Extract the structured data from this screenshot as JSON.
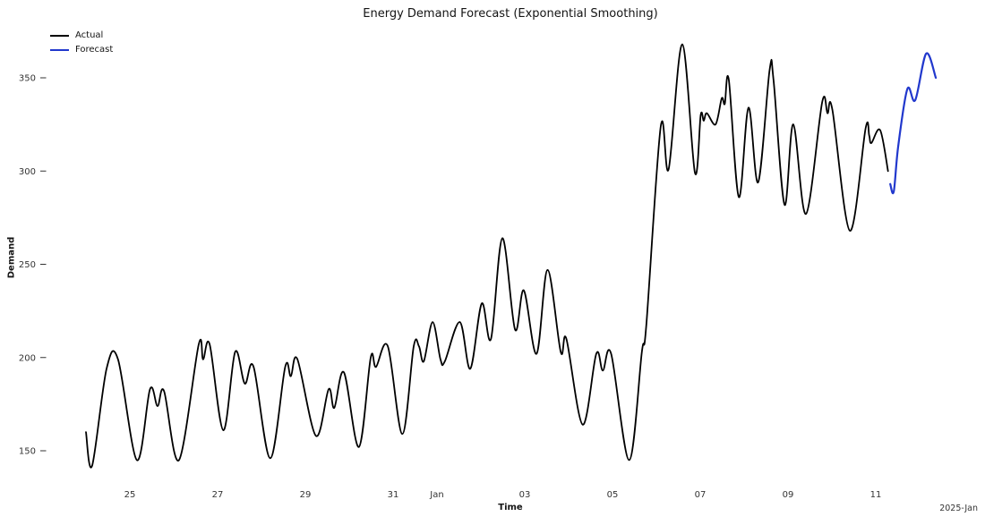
{
  "chart_data": {
    "type": "line",
    "title": "Energy Demand Forecast (Exponential Smoothing)",
    "xlabel": "Time",
    "ylabel": "Demand",
    "x_axis_offset_note": "2025-Jan",
    "x_unit": "days since 2024-12-24 (x ticks are dates, Dec 25 - Jan 11)",
    "grid": false,
    "background": "#ffffff",
    "legend": {
      "position": "upper-left",
      "entries": [
        "Actual",
        "Forecast"
      ]
    },
    "x_ticks": [
      {
        "t": 1,
        "label": "25"
      },
      {
        "t": 3,
        "label": "27"
      },
      {
        "t": 5,
        "label": "29"
      },
      {
        "t": 7,
        "label": "31"
      },
      {
        "t": 8,
        "label": "Jan"
      },
      {
        "t": 10,
        "label": "03"
      },
      {
        "t": 12,
        "label": "05"
      },
      {
        "t": 14,
        "label": "07"
      },
      {
        "t": 16,
        "label": "09"
      },
      {
        "t": 18,
        "label": "11"
      }
    ],
    "y_ticks": [
      150,
      200,
      250,
      300,
      350
    ],
    "xlim": [
      -0.8,
      19.9
    ],
    "ylim": [
      128,
      372
    ],
    "series": [
      {
        "name": "Actual",
        "color": "#000000",
        "line_width": 1.8,
        "points": [
          [
            0.0,
            160
          ],
          [
            0.14,
            142
          ],
          [
            0.47,
            194
          ],
          [
            0.73,
            199
          ],
          [
            1.16,
            145
          ],
          [
            1.46,
            183
          ],
          [
            1.63,
            174
          ],
          [
            1.78,
            182
          ],
          [
            2.12,
            145
          ],
          [
            2.57,
            207
          ],
          [
            2.67,
            199
          ],
          [
            2.82,
            207
          ],
          [
            3.13,
            161
          ],
          [
            3.4,
            203
          ],
          [
            3.62,
            186
          ],
          [
            3.82,
            195
          ],
          [
            4.2,
            146
          ],
          [
            4.54,
            195
          ],
          [
            4.67,
            190
          ],
          [
            4.82,
            199
          ],
          [
            5.24,
            158
          ],
          [
            5.53,
            183
          ],
          [
            5.66,
            173
          ],
          [
            5.88,
            192
          ],
          [
            6.22,
            152
          ],
          [
            6.49,
            200
          ],
          [
            6.61,
            195
          ],
          [
            6.88,
            206
          ],
          [
            7.21,
            159
          ],
          [
            7.47,
            206
          ],
          [
            7.59,
            206
          ],
          [
            7.7,
            198
          ],
          [
            7.9,
            219
          ],
          [
            8.08,
            199
          ],
          [
            8.18,
            198
          ],
          [
            8.52,
            219
          ],
          [
            8.76,
            194
          ],
          [
            9.02,
            229
          ],
          [
            9.23,
            210
          ],
          [
            9.49,
            264
          ],
          [
            9.78,
            215
          ],
          [
            9.98,
            236
          ],
          [
            10.27,
            202
          ],
          [
            10.52,
            247
          ],
          [
            10.82,
            203
          ],
          [
            10.95,
            210
          ],
          [
            11.32,
            164
          ],
          [
            11.63,
            202
          ],
          [
            11.78,
            193
          ],
          [
            11.97,
            202
          ],
          [
            12.38,
            145
          ],
          [
            12.67,
            203
          ],
          [
            12.77,
            217
          ],
          [
            13.1,
            324
          ],
          [
            13.28,
            301
          ],
          [
            13.59,
            368
          ],
          [
            13.88,
            299
          ],
          [
            14.01,
            330
          ],
          [
            14.08,
            327
          ],
          [
            14.15,
            331
          ],
          [
            14.35,
            325
          ],
          [
            14.49,
            339
          ],
          [
            14.56,
            336
          ],
          [
            14.65,
            349
          ],
          [
            14.88,
            286
          ],
          [
            15.1,
            334
          ],
          [
            15.32,
            294
          ],
          [
            15.58,
            354
          ],
          [
            15.67,
            349
          ],
          [
            15.92,
            282
          ],
          [
            16.12,
            325
          ],
          [
            16.41,
            277
          ],
          [
            16.78,
            337
          ],
          [
            16.9,
            331
          ],
          [
            17.01,
            333
          ],
          [
            17.41,
            268
          ],
          [
            17.77,
            323
          ],
          [
            17.85,
            319
          ],
          [
            17.9,
            315
          ],
          [
            18.1,
            322
          ],
          [
            18.28,
            300
          ]
        ]
      },
      {
        "name": "Forecast",
        "color": "#2138cd",
        "line_width": 2.2,
        "points": [
          [
            18.33,
            293
          ],
          [
            18.41,
            289
          ],
          [
            18.51,
            313
          ],
          [
            18.72,
            344
          ],
          [
            18.9,
            338
          ],
          [
            19.15,
            363
          ],
          [
            19.37,
            350
          ]
        ]
      }
    ]
  }
}
